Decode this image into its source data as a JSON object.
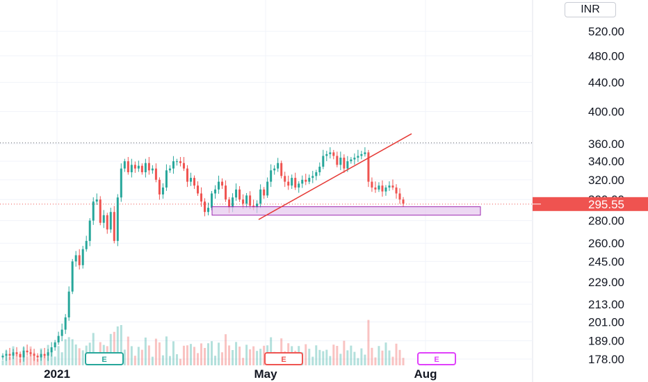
{
  "currency": "INR",
  "last_price": "295.55",
  "colors": {
    "up": "#26a69a",
    "down": "#ef5350",
    "trend": "#e53935",
    "zone_fill": "#e6c8ee",
    "zone_stroke": "#9c27b0",
    "earn_future": "#e040fb"
  },
  "chart_data": {
    "type": "candlestick",
    "y_ticks": [
      "520.00",
      "480.00",
      "440.00",
      "400.00",
      "360.00",
      "340.00",
      "320.00",
      "300.00",
      "280.00",
      "260.00",
      "245.00",
      "229.00",
      "213.00",
      "201.00",
      "189.00",
      "178.00"
    ],
    "x_ticks": [
      "2021",
      "May",
      "Aug"
    ],
    "last_price": 295.55,
    "resistance_level": 361,
    "support_zone": [
      285,
      293
    ],
    "trendline": {
      "from": {
        "date": "2021-04-27",
        "price": 281
      },
      "to": {
        "date": "2021-07-24",
        "price": 372
      }
    },
    "earnings_markers": [
      {
        "label": "E",
        "color": "#26a69a"
      },
      {
        "label": "E",
        "color": "#ef5350"
      },
      {
        "label": "E",
        "color": "#e040fb"
      }
    ],
    "closes": [
      180,
      181,
      180,
      182,
      181,
      179,
      183,
      182,
      181,
      180,
      179,
      181,
      180,
      182,
      185,
      188,
      192,
      196,
      204,
      222,
      245,
      250,
      242,
      255,
      262,
      280,
      298,
      300,
      278,
      285,
      272,
      288,
      262,
      302,
      332,
      340,
      328,
      336,
      332,
      335,
      328,
      338,
      330,
      332,
      320,
      305,
      312,
      330,
      332,
      340,
      340,
      338,
      332,
      318,
      322,
      314,
      306,
      298,
      288,
      292,
      306,
      310,
      318,
      314,
      300,
      292,
      302,
      310,
      300,
      296,
      304,
      294,
      292,
      296,
      310,
      304,
      318,
      330,
      332,
      338,
      324,
      318,
      314,
      322,
      312,
      316,
      320,
      318,
      322,
      324,
      328,
      334,
      346,
      348,
      350,
      346,
      336,
      344,
      332,
      340,
      342,
      344,
      346,
      348,
      350,
      318,
      312,
      310,
      314,
      308,
      312,
      314,
      312,
      306,
      300,
      296
    ]
  }
}
